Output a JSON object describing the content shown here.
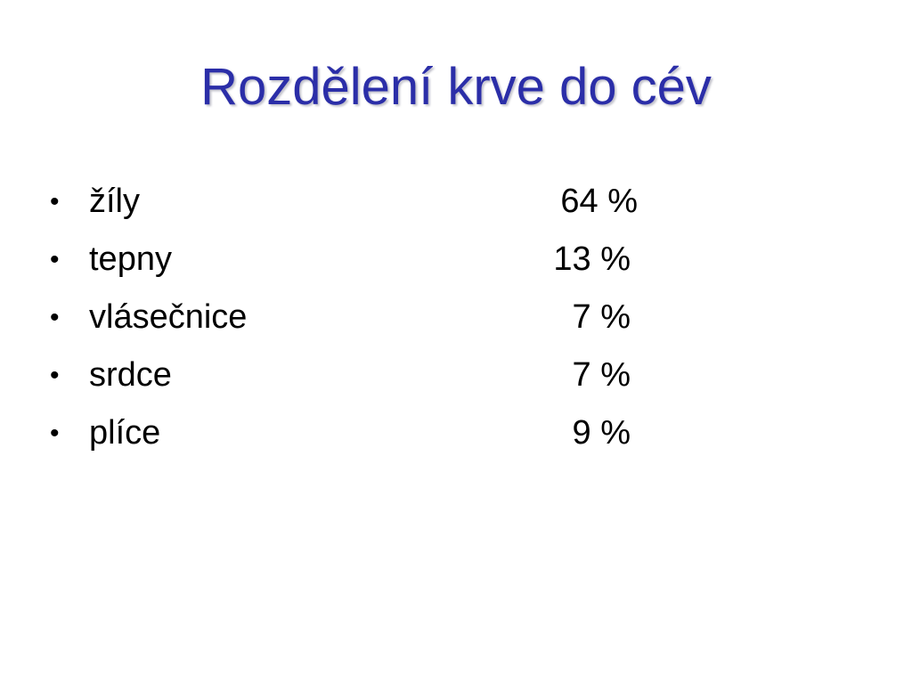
{
  "slide": {
    "title": "Rozdělení krve do cév",
    "bullet_glyph": "•",
    "items": [
      {
        "label": "žíly",
        "value": "64 %"
      },
      {
        "label": "tepny",
        "value": "13 %"
      },
      {
        "label": "vlásečnice",
        "value": "7 %"
      },
      {
        "label": "srdce",
        "value": "7 %"
      },
      {
        "label": "plíce",
        "value": "9 %"
      }
    ]
  },
  "colors": {
    "title": "#2b2ea8",
    "text": "#000000",
    "background": "#ffffff"
  }
}
